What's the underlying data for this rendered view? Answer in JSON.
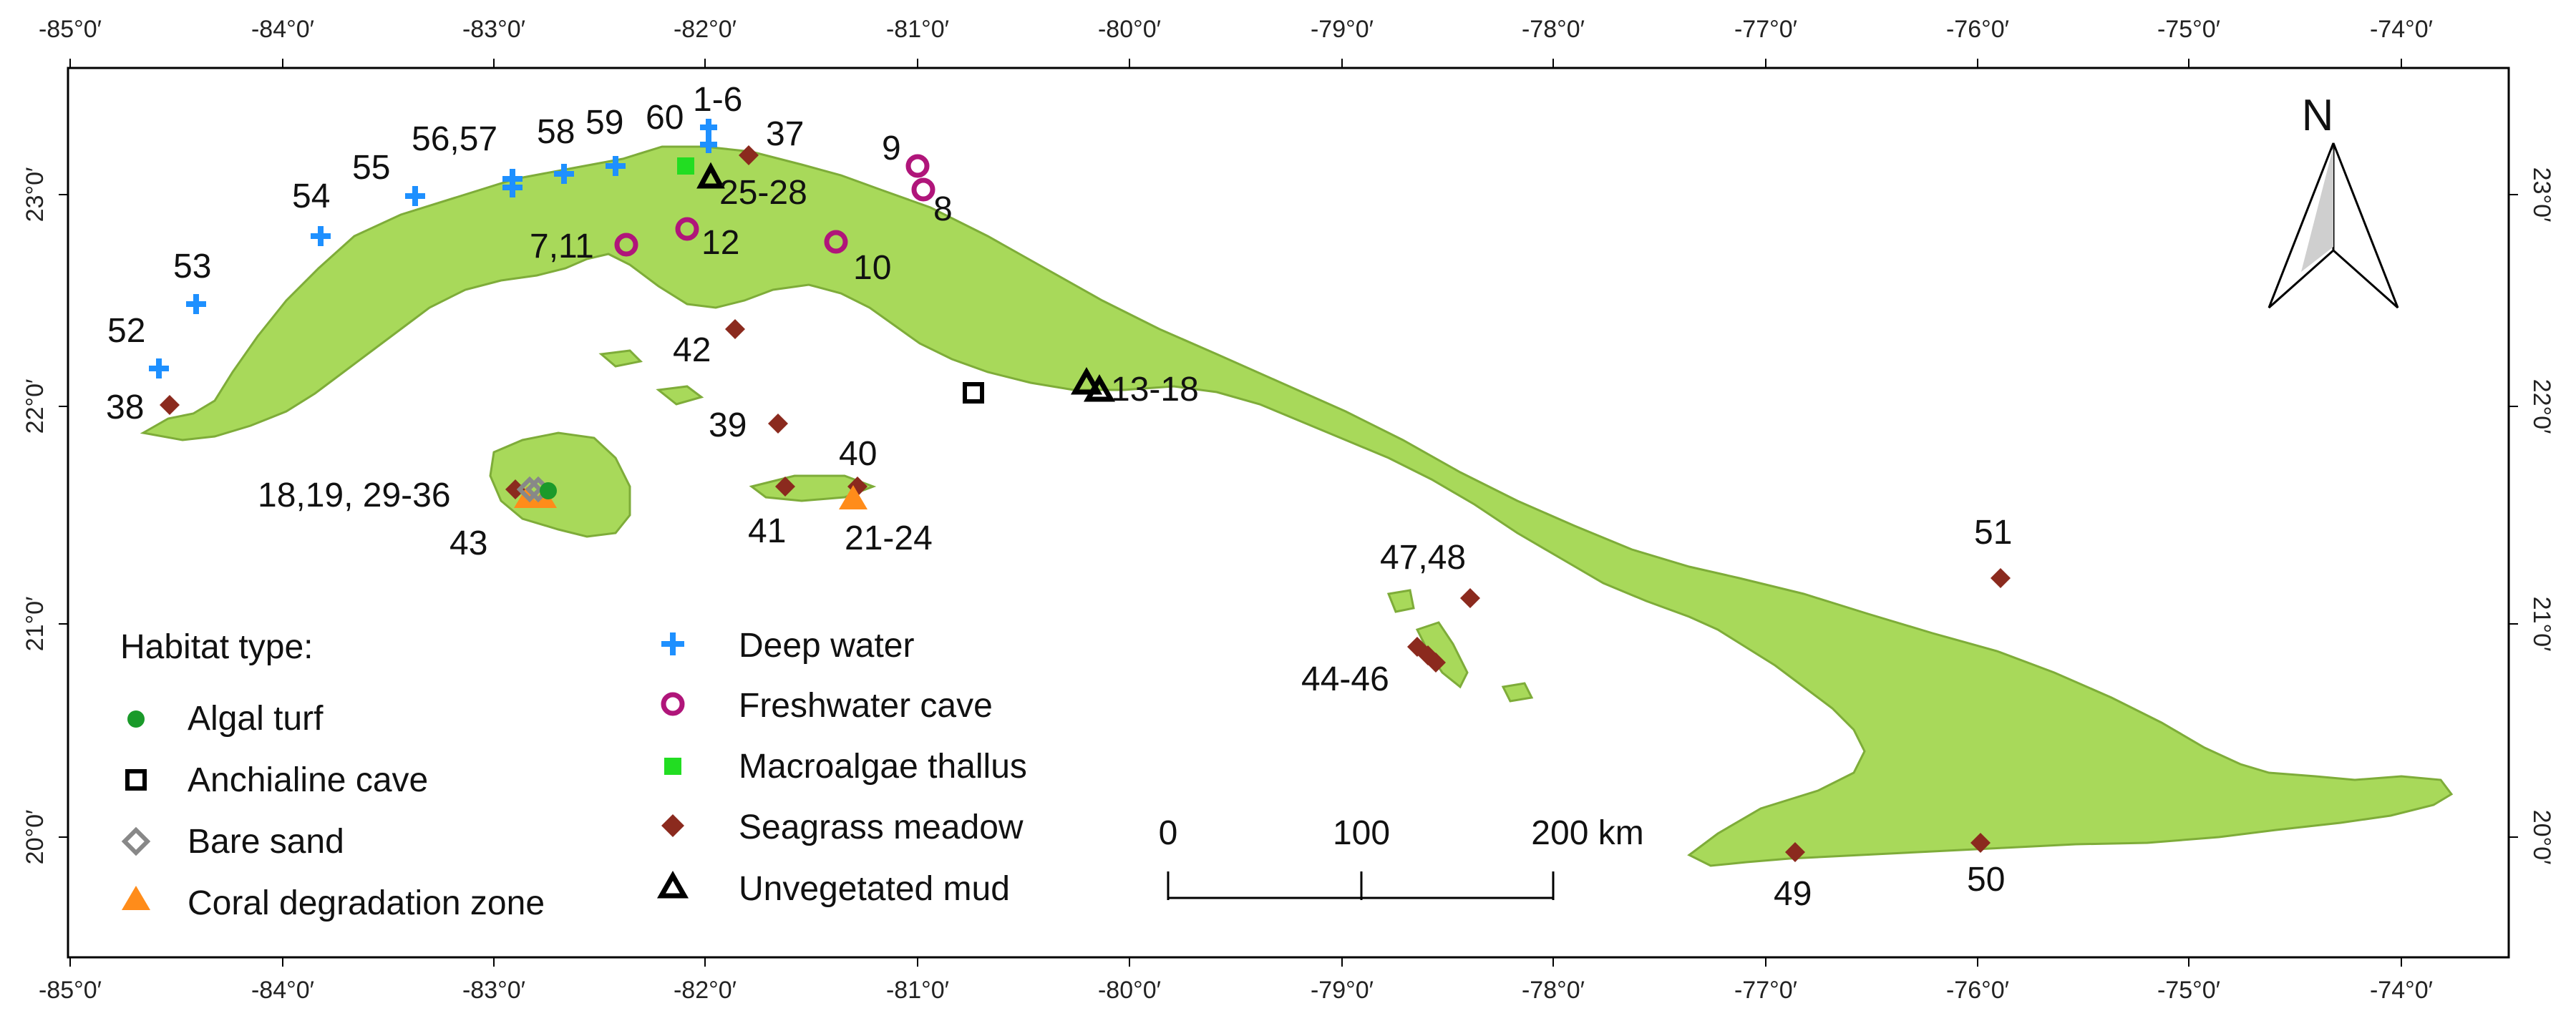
{
  "map": {
    "top_ticks": [
      "-85°0′",
      "-84°0′",
      "-83°0′",
      "-82°0′",
      "-81°0′",
      "-80°0′",
      "-79°0′",
      "-78°0′",
      "-77°0′",
      "-76°0′",
      "-75°0′",
      "-74°0′"
    ],
    "bottom_ticks": [
      "-85°0′",
      "-84°0′",
      "-83°0′",
      "-82°0′",
      "-81°0′",
      "-80°0′",
      "-79°0′",
      "-78°0′",
      "-77°0′",
      "-76°0′",
      "-75°0′",
      "-74°0′"
    ],
    "left_ticks": [
      "23°0′",
      "22°0′",
      "21°0′",
      "20°0′"
    ],
    "right_ticks": [
      "23°0′",
      "22°0′",
      "21°0′",
      "20°0′"
    ],
    "north_label": "N",
    "colors": {
      "land": "#a8d95a",
      "land_edge": "#7eac39",
      "deep_water": "#1e90ff",
      "freshwater_cave": "#b0157a",
      "macroalgae": "#22dd22",
      "seagrass": "#8b2a1e",
      "algal_turf": "#1a9a2a",
      "bare_sand": "#888888",
      "coral": "#ff8c1a",
      "black": "#000000"
    },
    "site_labels": [
      {
        "text": "1-6"
      },
      {
        "text": "60"
      },
      {
        "text": "59"
      },
      {
        "text": "58"
      },
      {
        "text": "56,57"
      },
      {
        "text": "55"
      },
      {
        "text": "54"
      },
      {
        "text": "53"
      },
      {
        "text": "52"
      },
      {
        "text": "38"
      },
      {
        "text": "37"
      },
      {
        "text": "25-28"
      },
      {
        "text": "9"
      },
      {
        "text": "8"
      },
      {
        "text": "7,11"
      },
      {
        "text": "12"
      },
      {
        "text": "10"
      },
      {
        "text": "42"
      },
      {
        "text": "13-18"
      },
      {
        "text": "39"
      },
      {
        "text": "40"
      },
      {
        "text": "41"
      },
      {
        "text": "21-24"
      },
      {
        "text": "18,19, 29-36"
      },
      {
        "text": "43"
      },
      {
        "text": "47,48"
      },
      {
        "text": "44-46"
      },
      {
        "text": "51"
      },
      {
        "text": "49"
      },
      {
        "text": "50"
      }
    ],
    "legend": {
      "title": "Habitat type:",
      "items": [
        {
          "label": "Algal turf",
          "icon": "filled-circle"
        },
        {
          "label": "Anchialine cave",
          "icon": "open-square"
        },
        {
          "label": "Bare sand",
          "icon": "open-diamond"
        },
        {
          "label": "Coral degradation zone",
          "icon": "filled-triangle"
        },
        {
          "label": "Deep water",
          "icon": "plus"
        },
        {
          "label": "Freshwater cave",
          "icon": "open-circle"
        },
        {
          "label": "Macroalgae thallus",
          "icon": "filled-square"
        },
        {
          "label": "Seagrass meadow",
          "icon": "filled-diamond"
        },
        {
          "label": "Unvegetated mud",
          "icon": "open-triangle"
        }
      ]
    },
    "scale_bar": {
      "labels": [
        "0",
        "100",
        "200 km"
      ]
    }
  }
}
